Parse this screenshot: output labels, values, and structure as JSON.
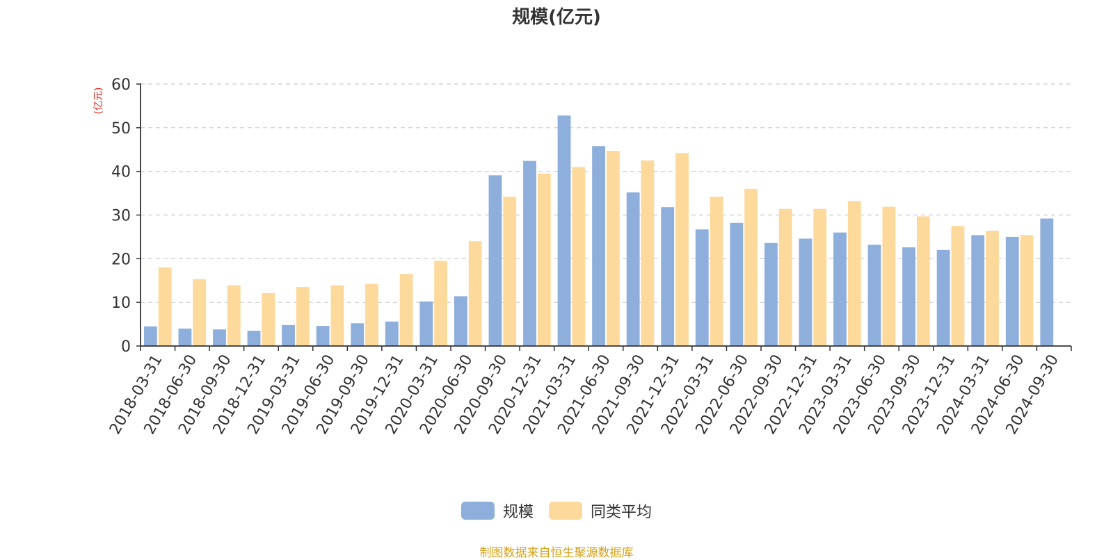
{
  "chart_data": {
    "type": "bar",
    "title": "规模(亿元)",
    "ylabel": "(亿元)",
    "ylim": [
      0,
      60
    ],
    "yticks": [
      0,
      10,
      20,
      30,
      40,
      50,
      60
    ],
    "grid": true,
    "legend_position": "bottom-center",
    "categories": [
      "2018-03-31",
      "2018-06-30",
      "2018-09-30",
      "2018-12-31",
      "2019-03-31",
      "2019-06-30",
      "2019-09-30",
      "2019-12-31",
      "2020-03-31",
      "2020-06-30",
      "2020-09-30",
      "2020-12-31",
      "2021-03-31",
      "2021-06-30",
      "2021-09-30",
      "2021-12-31",
      "2022-03-31",
      "2022-06-30",
      "2022-09-30",
      "2022-12-31",
      "2023-03-31",
      "2023-06-30",
      "2023-09-30",
      "2023-12-31",
      "2024-03-31",
      "2024-06-30",
      "2024-09-30"
    ],
    "series": [
      {
        "name": "规模",
        "color": "#8eaedc",
        "values": [
          4.5,
          4.0,
          3.8,
          3.5,
          4.8,
          4.6,
          5.2,
          5.6,
          10.2,
          11.4,
          39.1,
          42.4,
          52.8,
          45.8,
          35.2,
          31.8,
          26.7,
          28.2,
          23.6,
          24.6,
          26.0,
          23.2,
          22.6,
          22.0,
          25.4,
          25.0,
          29.2
        ]
      },
      {
        "name": "同类平均",
        "color": "#fdd99c",
        "values": [
          18.0,
          15.3,
          13.9,
          12.1,
          13.5,
          13.9,
          14.2,
          16.5,
          19.5,
          24.0,
          34.2,
          39.5,
          41.0,
          44.7,
          42.5,
          44.2,
          34.2,
          36.0,
          31.4,
          31.4,
          33.2,
          31.9,
          29.7,
          27.5,
          26.4,
          25.4,
          null
        ]
      }
    ]
  },
  "axis_label_color": "#e0231e",
  "source_text": "制图数据来自恒生聚源数据库"
}
